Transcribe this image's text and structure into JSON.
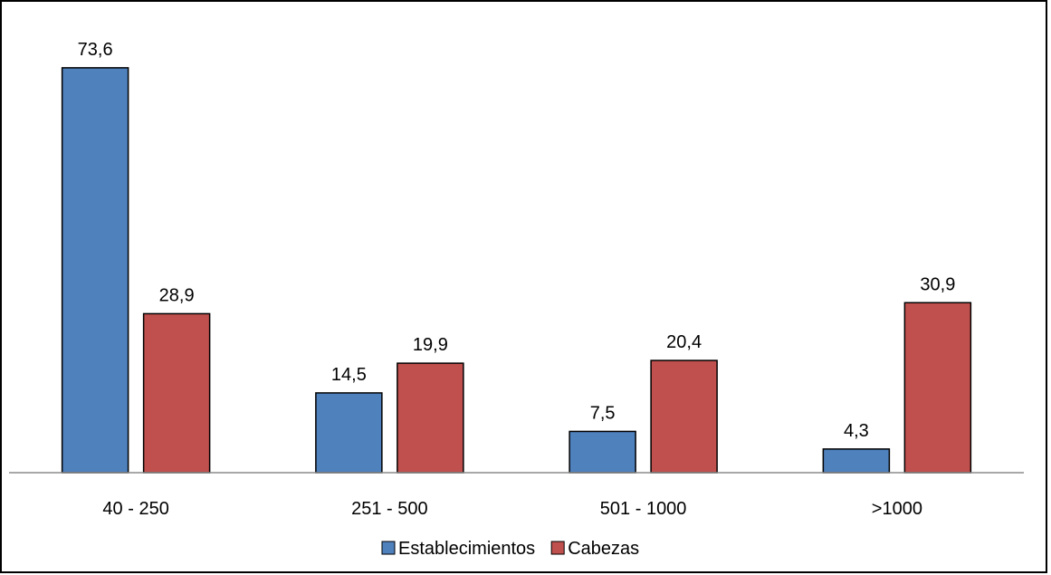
{
  "chart_data": {
    "type": "bar",
    "categories": [
      "40 - 250",
      "251 - 500",
      "501 - 1000",
      ">1000"
    ],
    "series": [
      {
        "name": "Establecimientos",
        "values": [
          73.6,
          14.5,
          7.5,
          4.3
        ],
        "labels": [
          "73,6",
          "14,5",
          "7,5",
          "4,3"
        ],
        "color": "#4f81bd"
      },
      {
        "name": "Cabezas",
        "values": [
          28.9,
          19.9,
          20.4,
          30.9
        ],
        "labels": [
          "28,9",
          "19,9",
          "20,4",
          "30,9"
        ],
        "color": "#c0504d"
      }
    ],
    "ylim": [
      0,
      80
    ],
    "grid": false,
    "legend": "bottom"
  }
}
